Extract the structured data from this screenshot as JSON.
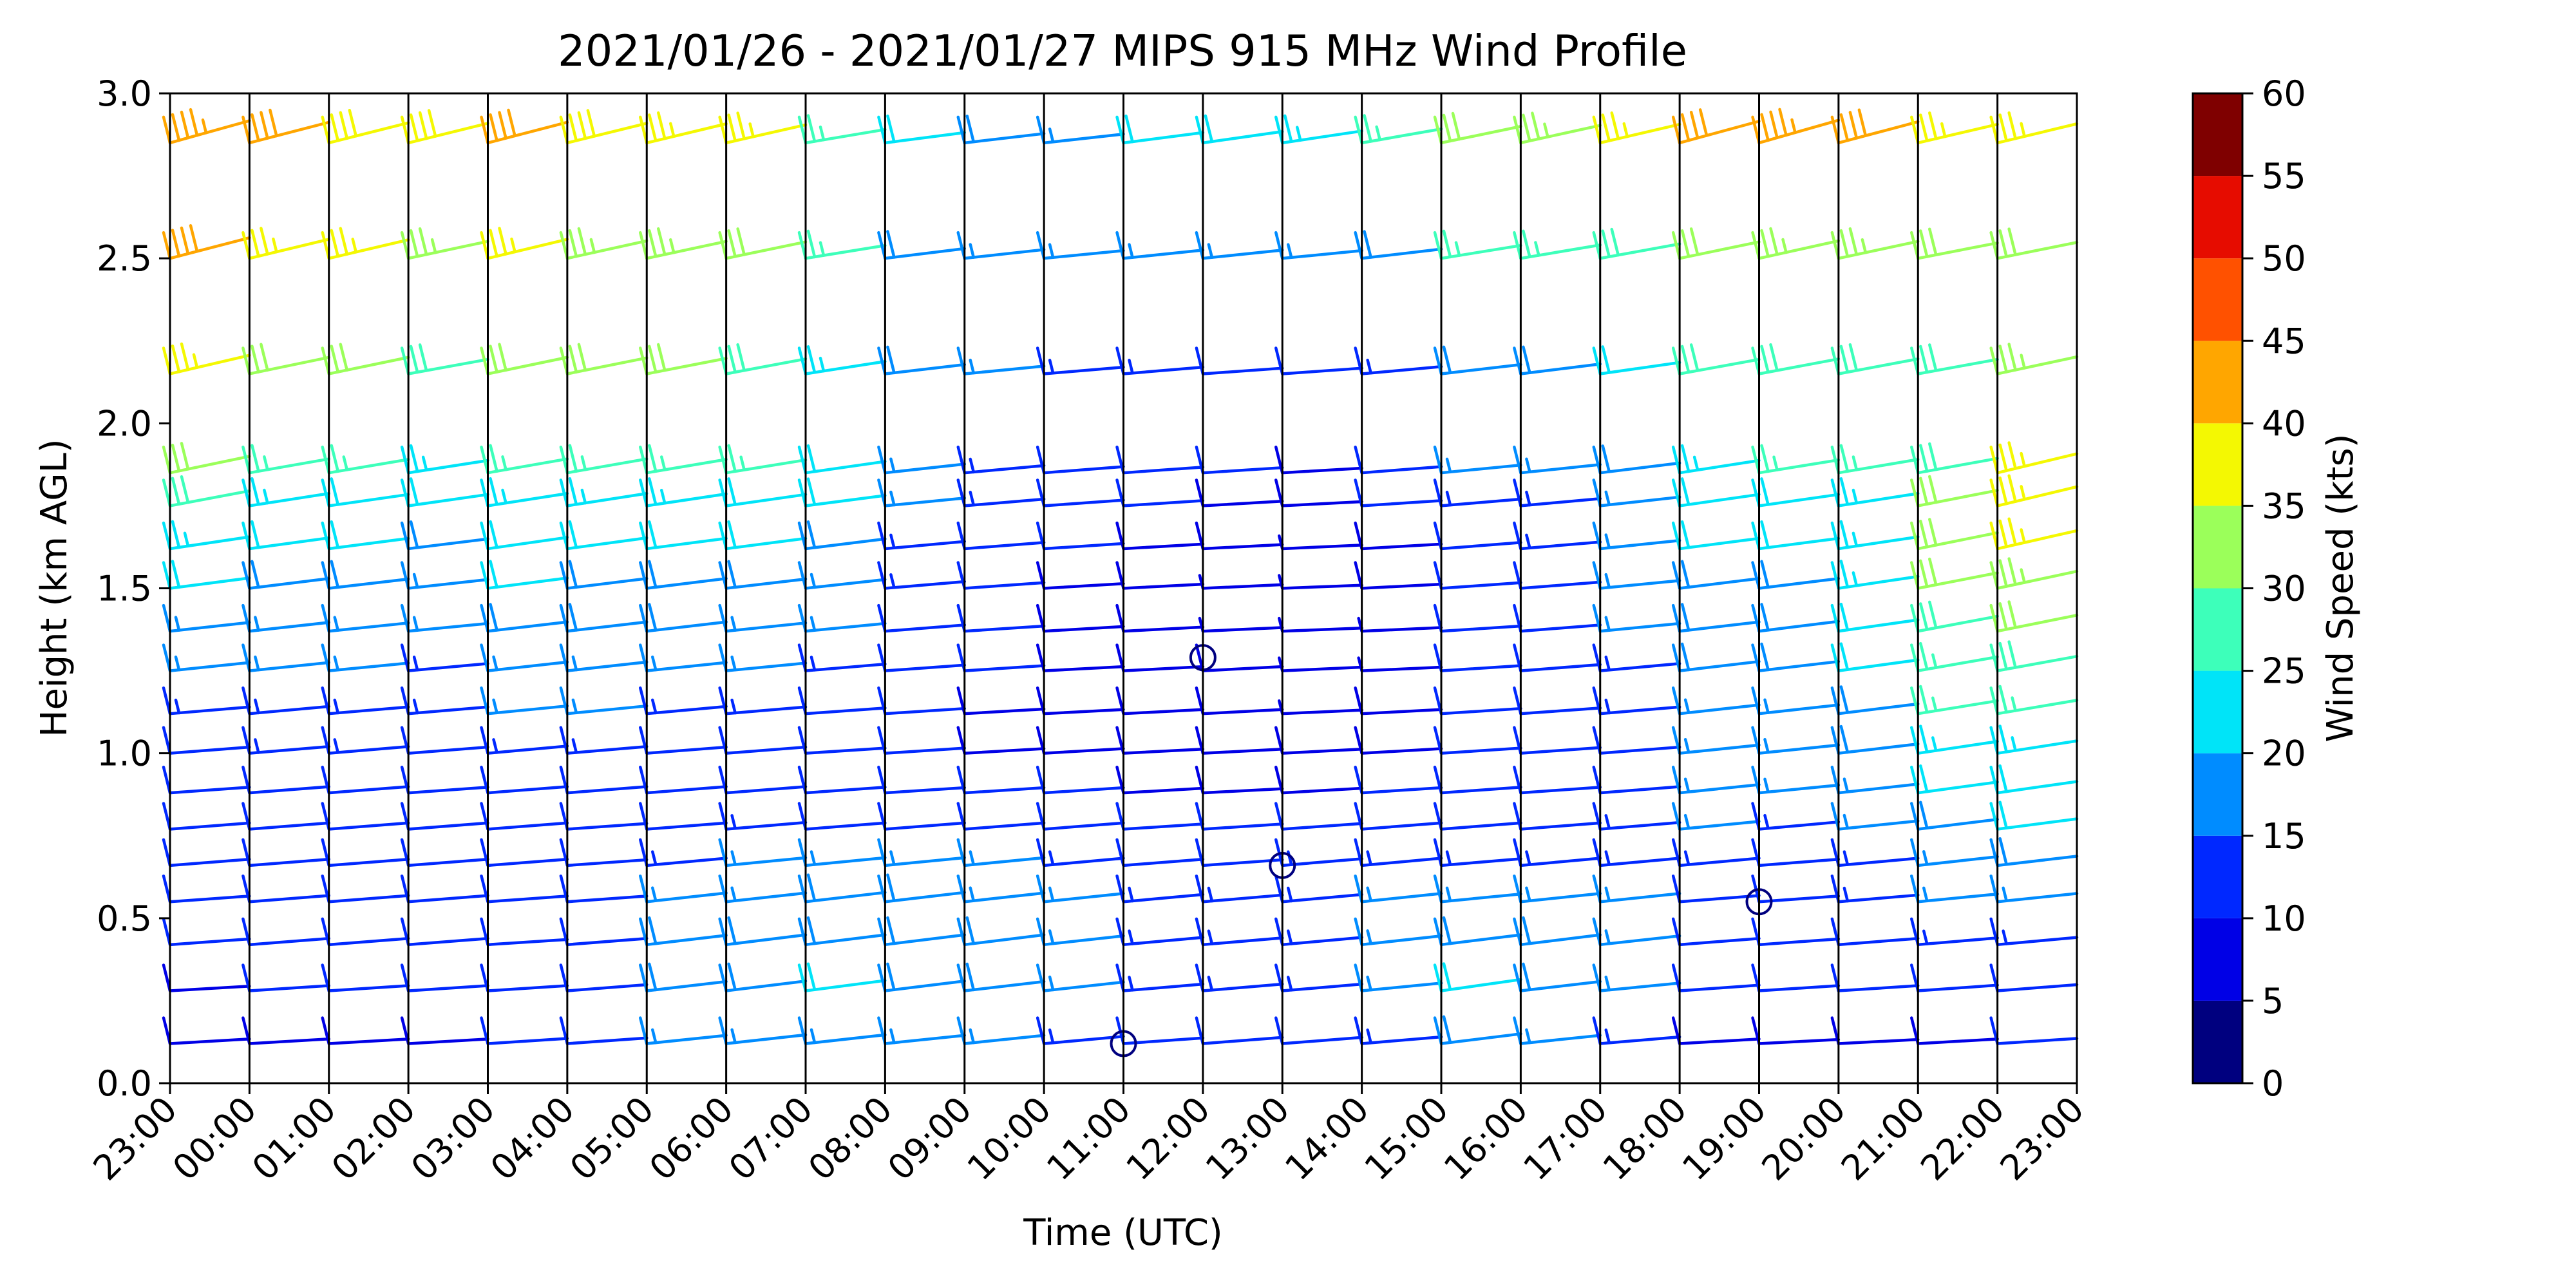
{
  "chart_data": {
    "type": "wind_barb_time_height",
    "title": "2021/01/26 - 2021/01/27 MIPS 915 MHz Wind Profile",
    "xlabel": "Time (UTC)",
    "ylabel": "Height (km AGL)",
    "x_ticks": [
      "23:00",
      "00:00",
      "01:00",
      "02:00",
      "03:00",
      "04:00",
      "05:00",
      "06:00",
      "07:00",
      "08:00",
      "09:00",
      "10:00",
      "11:00",
      "12:00",
      "13:00",
      "14:00",
      "15:00",
      "16:00",
      "17:00",
      "18:00",
      "19:00",
      "20:00",
      "21:00",
      "22:00",
      "23:00"
    ],
    "ylim": [
      0,
      3.0
    ],
    "y_ticks": [
      "0.0",
      "0.5",
      "1.0",
      "1.5",
      "2.0",
      "2.5",
      "3.0"
    ],
    "grid": "vertical lines at each hour",
    "colorbar": {
      "label": "Wind Speed (kts)",
      "ticks": [
        "0",
        "5",
        "10",
        "15",
        "20",
        "25",
        "30",
        "35",
        "40",
        "45",
        "50",
        "55",
        "60"
      ],
      "bins": [
        {
          "from": 0,
          "to": 5,
          "color": "#00007f"
        },
        {
          "from": 5,
          "to": 10,
          "color": "#0000e6"
        },
        {
          "from": 10,
          "to": 15,
          "color": "#0028ff"
        },
        {
          "from": 15,
          "to": 20,
          "color": "#008cff"
        },
        {
          "from": 20,
          "to": 25,
          "color": "#00e4f8"
        },
        {
          "from": 25,
          "to": 30,
          "color": "#3dffba"
        },
        {
          "from": 30,
          "to": 35,
          "color": "#9bff5a"
        },
        {
          "from": 35,
          "to": 40,
          "color": "#f4f802"
        },
        {
          "from": 40,
          "to": 45,
          "color": "#ffa600"
        },
        {
          "from": 45,
          "to": 50,
          "color": "#ff5100"
        },
        {
          "from": 50,
          "to": 55,
          "color": "#e60c00"
        },
        {
          "from": 55,
          "to": 60,
          "color": "#7f0000"
        }
      ]
    },
    "profiles": [
      {
        "time": "23:00",
        "speeds_kts": [
          9,
          9,
          11,
          11,
          12,
          12,
          11,
          12,
          13,
          16,
          17,
          20,
          23,
          29,
          32,
          36,
          40,
          43
        ]
      },
      {
        "time": "00:00",
        "speeds_kts": [
          9,
          10,
          12,
          12,
          12,
          12,
          12,
          13,
          14,
          16,
          17,
          19,
          21,
          24,
          27,
          32,
          37,
          40
        ]
      },
      {
        "time": "01:00",
        "speeds_kts": [
          9,
          10,
          12,
          12,
          12,
          12,
          12,
          13,
          13,
          15,
          16,
          18,
          20,
          22,
          26,
          32,
          36,
          39
        ]
      },
      {
        "time": "02:00",
        "speeds_kts": [
          9,
          10,
          12,
          12,
          12,
          12,
          11,
          12,
          13,
          14,
          15,
          17,
          19,
          22,
          24,
          28,
          33,
          38
        ]
      },
      {
        "time": "03:00",
        "speeds_kts": [
          10,
          10,
          10,
          11,
          12,
          12,
          12,
          14,
          15,
          17,
          18,
          20,
          22,
          24,
          27,
          32,
          37,
          40
        ]
      },
      {
        "time": "04:00",
        "speeds_kts": [
          11,
          12,
          12,
          11,
          11,
          11,
          12,
          13,
          15,
          17,
          18,
          19,
          21,
          24,
          27,
          31,
          34,
          38
        ]
      },
      {
        "time": "05:00",
        "speeds_kts": [
          16,
          18,
          18,
          17,
          14,
          12,
          12,
          12,
          14,
          16,
          18,
          19,
          20,
          23,
          26,
          30,
          33,
          37
        ]
      },
      {
        "time": "06:00",
        "speeds_kts": [
          17,
          19,
          19,
          17,
          15,
          13,
          12,
          12,
          13,
          15,
          16,
          18,
          20,
          22,
          25,
          29,
          32,
          35
        ]
      },
      {
        "time": "07:00",
        "speeds_kts": [
          17,
          20,
          19,
          18,
          15,
          12,
          11,
          10,
          11,
          13,
          15,
          17,
          19,
          20,
          22,
          24,
          25,
          26
        ]
      },
      {
        "time": "08:00",
        "speeds_kts": [
          16,
          19,
          19,
          18,
          15,
          12,
          10,
          10,
          10,
          11,
          12,
          13,
          14,
          15,
          17,
          18,
          19,
          20
        ]
      },
      {
        "time": "09:00",
        "speeds_kts": [
          16,
          18,
          19,
          17,
          15,
          12,
          10,
          9,
          9,
          10,
          10,
          11,
          12,
          13,
          14,
          15,
          17,
          18
        ]
      },
      {
        "time": "10:00",
        "speeds_kts": [
          14,
          17,
          17,
          16,
          14,
          12,
          10,
          9,
          8,
          8,
          9,
          9,
          10,
          11,
          12,
          13,
          15,
          17
        ]
      },
      {
        "time": "11:00",
        "speeds_kts": [
          11,
          13,
          14,
          14,
          12,
          10,
          9,
          8,
          8,
          8,
          8,
          8,
          9,
          10,
          11,
          13,
          16,
          20
        ]
      },
      {
        "time": "12:00",
        "speeds_kts": [
          12,
          13,
          13,
          13,
          11,
          10,
          8,
          8,
          8,
          8,
          7,
          7,
          8,
          9,
          10,
          11,
          16,
          22
        ]
      },
      {
        "time": "13:00",
        "speeds_kts": [
          12,
          13,
          14,
          14,
          13,
          11,
          9,
          8,
          7,
          7,
          6,
          6,
          7,
          8,
          9,
          11,
          15,
          23
        ]
      },
      {
        "time": "14:00",
        "speeds_kts": [
          13,
          15,
          17,
          16,
          14,
          12,
          10,
          9,
          8,
          7,
          7,
          8,
          9,
          10,
          12,
          14,
          18,
          27
        ]
      },
      {
        "time": "15:00",
        "speeds_kts": [
          19,
          22,
          19,
          15,
          13,
          12,
          11,
          10,
          10,
          10,
          10,
          11,
          12,
          13,
          15,
          18,
          25,
          32
        ]
      },
      {
        "time": "16:00",
        "speeds_kts": [
          16,
          18,
          19,
          16,
          14,
          12,
          11,
          11,
          11,
          12,
          12,
          12,
          13,
          14,
          16,
          19,
          26,
          34
        ]
      },
      {
        "time": "17:00",
        "speeds_kts": [
          13,
          15,
          17,
          16,
          14,
          13,
          12,
          12,
          13,
          14,
          15,
          15,
          16,
          17,
          19,
          22,
          28,
          36
        ]
      },
      {
        "time": "18:00",
        "speeds_kts": [
          9,
          11,
          12,
          12,
          14,
          15,
          16,
          16,
          17,
          18,
          18,
          19,
          20,
          22,
          24,
          28,
          32,
          42
        ]
      },
      {
        "time": "19:00",
        "speeds_kts": [
          8,
          10,
          11,
          11,
          12,
          14,
          15,
          16,
          17,
          18,
          19,
          19,
          20,
          22,
          25,
          29,
          34,
          44
        ]
      },
      {
        "time": "20:00",
        "speeds_kts": [
          8,
          10,
          12,
          13,
          14,
          16,
          17,
          18,
          19,
          21,
          22,
          23,
          23,
          24,
          26,
          29,
          33,
          41
        ]
      },
      {
        "time": "21:00",
        "speeds_kts": [
          9,
          11,
          13,
          15,
          17,
          19,
          21,
          23,
          25,
          27,
          29,
          30,
          31,
          30,
          28,
          28,
          30,
          36
        ]
      },
      {
        "time": "22:00",
        "speeds_kts": [
          10,
          12,
          14,
          16,
          18,
          20,
          22,
          24,
          26,
          28,
          31,
          33,
          35,
          37,
          37,
          33,
          31,
          37
        ]
      }
    ],
    "profile_heights_km": [
      0.12,
      0.28,
      0.42,
      0.55,
      0.66,
      0.77,
      0.88,
      1.0,
      1.12,
      1.25,
      1.37,
      1.5,
      1.62,
      1.75,
      1.85,
      2.15,
      2.5,
      2.85
    ],
    "calm_markers": [
      {
        "time": "11:00",
        "height_km": 0.12
      },
      {
        "time": "12:00",
        "height_km": 1.29
      },
      {
        "time": "13:00",
        "height_km": 0.66
      },
      {
        "time": "19:00",
        "height_km": 0.55
      }
    ]
  }
}
